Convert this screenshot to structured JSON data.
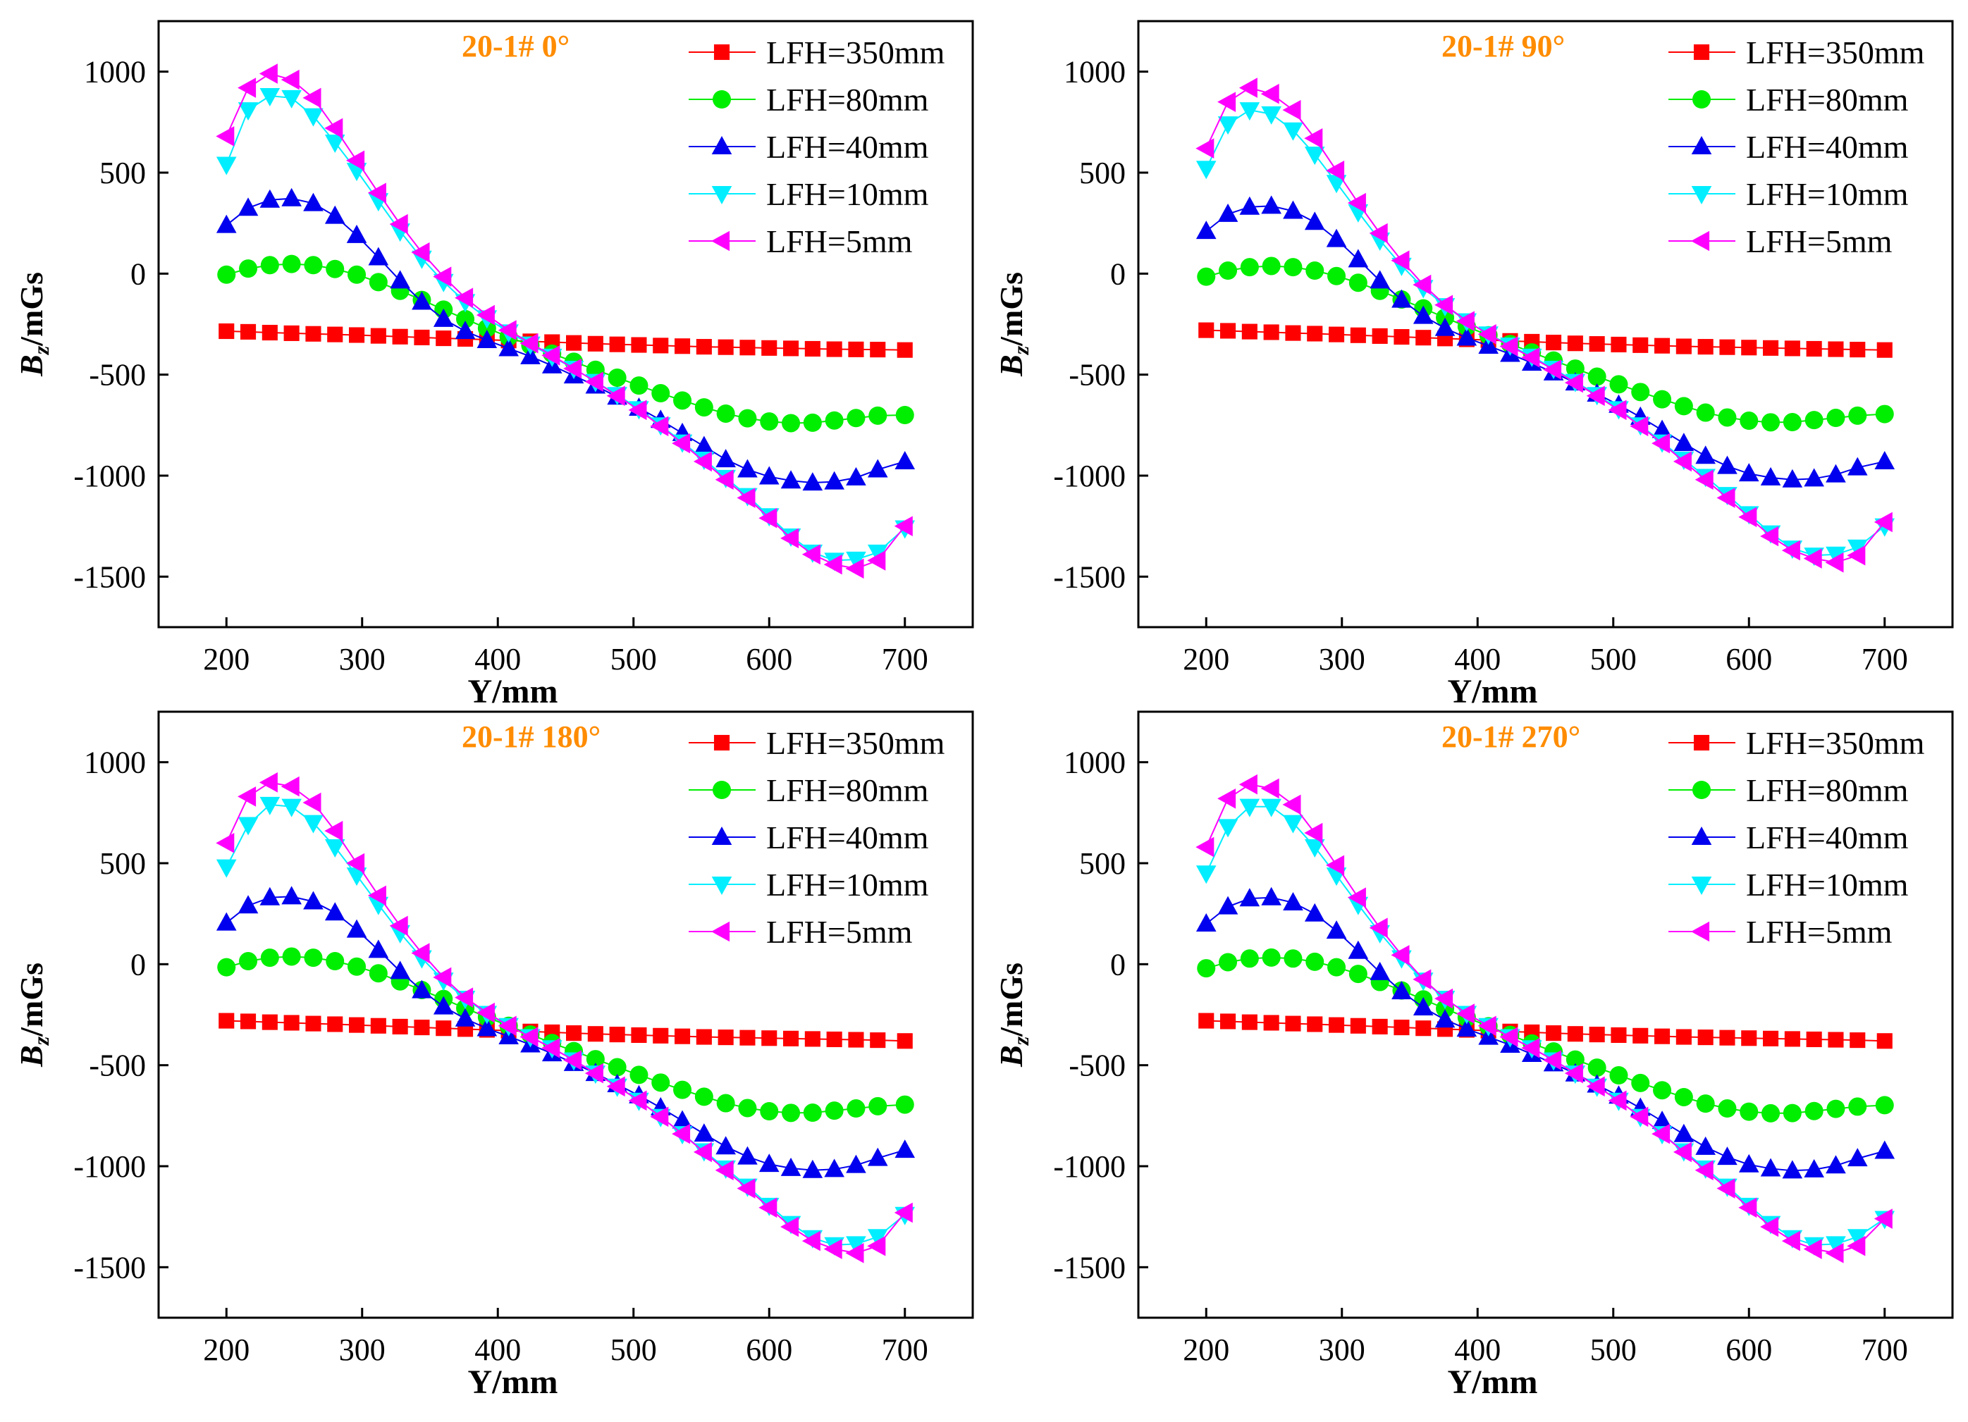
{
  "x": [
    200,
    216,
    232,
    248,
    264,
    280,
    296,
    312,
    328,
    344,
    360,
    376,
    392,
    408,
    424,
    440,
    456,
    472,
    488,
    504,
    520,
    536,
    552,
    568,
    584,
    600,
    616,
    632,
    648,
    664,
    680,
    700
  ],
  "chart_data": [
    {
      "type": "line",
      "title": "20-1# 0°",
      "xlabel": "Y/mm",
      "ylabel_main": "B",
      "ylabel_sub": "z",
      "ylabel_rest": "/mGs",
      "xlim": [
        150,
        750
      ],
      "ylim": [
        -1750,
        1250
      ],
      "xticks": [
        200,
        300,
        400,
        500,
        600,
        700
      ],
      "yticks": [
        -1500,
        -1000,
        -500,
        0,
        500,
        1000
      ],
      "legend_position": "top-right",
      "grid": false,
      "series": [
        {
          "name": "LFH=350mm",
          "color": "#ff0000",
          "marker": "square",
          "values": [
            -285,
            -288,
            -292,
            -295,
            -298,
            -301,
            -304,
            -308,
            -312,
            -316,
            -320,
            -323,
            -327,
            -331,
            -335,
            -339,
            -343,
            -347,
            -350,
            -353,
            -356,
            -359,
            -362,
            -364,
            -366,
            -368,
            -370,
            -372,
            -374,
            -375,
            -376,
            -378
          ]
        },
        {
          "name": "LFH=80mm",
          "color": "#00ee00",
          "marker": "circle",
          "values": [
            -5,
            25,
            42,
            48,
            42,
            23,
            -5,
            -42,
            -85,
            -130,
            -178,
            -225,
            -270,
            -313,
            -355,
            -396,
            -436,
            -476,
            -515,
            -554,
            -592,
            -628,
            -662,
            -693,
            -716,
            -732,
            -740,
            -738,
            -727,
            -715,
            -703,
            -700
          ]
        },
        {
          "name": "LFH=40mm",
          "color": "#0000ee",
          "marker": "triangle-up",
          "values": [
            240,
            325,
            365,
            372,
            348,
            285,
            190,
            80,
            -35,
            -140,
            -225,
            -285,
            -330,
            -370,
            -410,
            -455,
            -505,
            -555,
            -610,
            -665,
            -725,
            -790,
            -855,
            -920,
            -970,
            -1005,
            -1025,
            -1035,
            -1030,
            -1010,
            -970,
            -930
          ]
        },
        {
          "name": "LFH=10mm",
          "color": "#00eeff",
          "marker": "triangle-down",
          "values": [
            540,
            810,
            880,
            870,
            780,
            650,
            510,
            360,
            210,
            75,
            -40,
            -140,
            -220,
            -290,
            -350,
            -410,
            -470,
            -535,
            -600,
            -670,
            -750,
            -835,
            -920,
            -1010,
            -1100,
            -1200,
            -1300,
            -1380,
            -1420,
            -1415,
            -1380,
            -1260
          ]
        },
        {
          "name": "LFH=5mm",
          "color": "#ff00ff",
          "marker": "triangle-left",
          "values": [
            680,
            920,
            990,
            960,
            870,
            720,
            560,
            400,
            245,
            105,
            -15,
            -120,
            -205,
            -280,
            -345,
            -405,
            -470,
            -535,
            -605,
            -675,
            -755,
            -840,
            -930,
            -1020,
            -1110,
            -1210,
            -1310,
            -1390,
            -1440,
            -1460,
            -1420,
            -1250
          ]
        }
      ]
    },
    {
      "type": "line",
      "title": "20-1# 90°",
      "xlabel": "Y/mm",
      "ylabel_main": "B",
      "ylabel_sub": "z",
      "ylabel_rest": "/mGs",
      "xlim": [
        150,
        750
      ],
      "ylim": [
        -1750,
        1250
      ],
      "xticks": [
        200,
        300,
        400,
        500,
        600,
        700
      ],
      "yticks": [
        -1500,
        -1000,
        -500,
        0,
        500,
        1000
      ],
      "legend_position": "top-right",
      "grid": false,
      "series": [
        {
          "name": "LFH=350mm",
          "color": "#ff0000",
          "marker": "square",
          "values": [
            -280,
            -283,
            -287,
            -290,
            -294,
            -297,
            -301,
            -305,
            -309,
            -313,
            -317,
            -321,
            -325,
            -329,
            -333,
            -337,
            -341,
            -345,
            -348,
            -351,
            -354,
            -357,
            -360,
            -362,
            -364,
            -366,
            -368,
            -370,
            -372,
            -374,
            -376,
            -378
          ]
        },
        {
          "name": "LFH=80mm",
          "color": "#00ee00",
          "marker": "circle",
          "values": [
            -15,
            15,
            32,
            38,
            32,
            15,
            -12,
            -45,
            -85,
            -128,
            -172,
            -218,
            -262,
            -305,
            -348,
            -390,
            -430,
            -470,
            -510,
            -548,
            -586,
            -622,
            -656,
            -688,
            -712,
            -728,
            -736,
            -735,
            -725,
            -714,
            -703,
            -695
          ]
        },
        {
          "name": "LFH=40mm",
          "color": "#0000ee",
          "marker": "triangle-up",
          "values": [
            210,
            295,
            330,
            335,
            310,
            255,
            170,
            70,
            -35,
            -130,
            -210,
            -270,
            -318,
            -358,
            -398,
            -442,
            -490,
            -540,
            -595,
            -650,
            -710,
            -775,
            -840,
            -903,
            -953,
            -990,
            -1010,
            -1020,
            -1015,
            -995,
            -960,
            -930
          ]
        },
        {
          "name": "LFH=10mm",
          "color": "#00eeff",
          "marker": "triangle-down",
          "values": [
            520,
            740,
            810,
            790,
            710,
            590,
            450,
            305,
            165,
            40,
            -70,
            -160,
            -235,
            -300,
            -355,
            -410,
            -470,
            -535,
            -600,
            -670,
            -750,
            -835,
            -920,
            -1005,
            -1095,
            -1190,
            -1285,
            -1360,
            -1395,
            -1390,
            -1355,
            -1250
          ]
        },
        {
          "name": "LFH=5mm",
          "color": "#ff00ff",
          "marker": "triangle-left",
          "values": [
            620,
            850,
            920,
            890,
            810,
            670,
            510,
            350,
            200,
            65,
            -55,
            -155,
            -235,
            -300,
            -360,
            -415,
            -475,
            -540,
            -605,
            -675,
            -755,
            -840,
            -930,
            -1020,
            -1110,
            -1205,
            -1300,
            -1370,
            -1410,
            -1430,
            -1395,
            -1230
          ]
        }
      ]
    },
    {
      "type": "line",
      "title": "20-1# 180°",
      "xlabel": "Y/mm",
      "ylabel_main": "B",
      "ylabel_sub": "z",
      "ylabel_rest": "/mGs",
      "xlim": [
        150,
        750
      ],
      "ylim": [
        -1750,
        1250
      ],
      "xticks": [
        200,
        300,
        400,
        500,
        600,
        700
      ],
      "yticks": [
        -1500,
        -1000,
        -500,
        0,
        500,
        1000
      ],
      "legend_position": "top-right",
      "grid": false,
      "series": [
        {
          "name": "LFH=350mm",
          "color": "#ff0000",
          "marker": "square",
          "values": [
            -280,
            -283,
            -287,
            -290,
            -294,
            -297,
            -301,
            -305,
            -309,
            -313,
            -317,
            -321,
            -325,
            -329,
            -333,
            -337,
            -341,
            -345,
            -348,
            -351,
            -354,
            -357,
            -360,
            -362,
            -364,
            -366,
            -368,
            -370,
            -372,
            -374,
            -376,
            -380
          ]
        },
        {
          "name": "LFH=80mm",
          "color": "#00ee00",
          "marker": "circle",
          "values": [
            -15,
            15,
            32,
            38,
            32,
            15,
            -12,
            -45,
            -85,
            -128,
            -172,
            -218,
            -262,
            -305,
            -348,
            -390,
            -430,
            -470,
            -510,
            -548,
            -586,
            -622,
            -656,
            -688,
            -712,
            -728,
            -736,
            -735,
            -725,
            -714,
            -703,
            -695
          ]
        },
        {
          "name": "LFH=40mm",
          "color": "#0000ee",
          "marker": "triangle-up",
          "values": [
            205,
            290,
            330,
            335,
            310,
            255,
            170,
            70,
            -35,
            -130,
            -210,
            -270,
            -318,
            -358,
            -398,
            -442,
            -490,
            -540,
            -595,
            -650,
            -710,
            -775,
            -840,
            -903,
            -953,
            -990,
            -1010,
            -1020,
            -1015,
            -995,
            -960,
            -920
          ]
        },
        {
          "name": "LFH=10mm",
          "color": "#00eeff",
          "marker": "triangle-down",
          "values": [
            480,
            690,
            790,
            780,
            700,
            580,
            440,
            295,
            155,
            30,
            -80,
            -170,
            -245,
            -305,
            -360,
            -415,
            -475,
            -540,
            -605,
            -675,
            -755,
            -840,
            -925,
            -1010,
            -1100,
            -1195,
            -1285,
            -1355,
            -1390,
            -1385,
            -1350,
            -1240
          ]
        },
        {
          "name": "LFH=5mm",
          "color": "#ff00ff",
          "marker": "triangle-left",
          "values": [
            600,
            830,
            900,
            880,
            800,
            660,
            500,
            340,
            190,
            55,
            -65,
            -165,
            -240,
            -305,
            -360,
            -415,
            -475,
            -540,
            -605,
            -675,
            -755,
            -840,
            -930,
            -1020,
            -1110,
            -1205,
            -1300,
            -1370,
            -1410,
            -1430,
            -1395,
            -1230
          ]
        }
      ]
    },
    {
      "type": "line",
      "title": "20-1# 270°",
      "xlabel": "Y/mm",
      "ylabel_main": "B",
      "ylabel_sub": "z",
      "ylabel_rest": "/mGs",
      "xlim": [
        150,
        750
      ],
      "ylim": [
        -1750,
        1250
      ],
      "xticks": [
        200,
        300,
        400,
        500,
        600,
        700
      ],
      "yticks": [
        -1500,
        -1000,
        -500,
        0,
        500,
        1000
      ],
      "legend_position": "top-right",
      "grid": false,
      "series": [
        {
          "name": "LFH=350mm",
          "color": "#ff0000",
          "marker": "square",
          "values": [
            -280,
            -283,
            -287,
            -290,
            -294,
            -297,
            -301,
            -305,
            -309,
            -313,
            -317,
            -321,
            -325,
            -329,
            -333,
            -337,
            -341,
            -345,
            -348,
            -351,
            -354,
            -357,
            -360,
            -362,
            -364,
            -366,
            -368,
            -370,
            -372,
            -374,
            -376,
            -380
          ]
        },
        {
          "name": "LFH=80mm",
          "color": "#00ee00",
          "marker": "circle",
          "values": [
            -20,
            10,
            28,
            33,
            28,
            12,
            -15,
            -48,
            -88,
            -130,
            -174,
            -220,
            -264,
            -307,
            -350,
            -392,
            -432,
            -472,
            -512,
            -550,
            -588,
            -624,
            -658,
            -690,
            -714,
            -730,
            -738,
            -737,
            -727,
            -716,
            -705,
            -698
          ]
        },
        {
          "name": "LFH=40mm",
          "color": "#0000ee",
          "marker": "triangle-up",
          "values": [
            200,
            285,
            325,
            330,
            305,
            250,
            165,
            65,
            -40,
            -135,
            -215,
            -275,
            -320,
            -360,
            -400,
            -445,
            -492,
            -542,
            -597,
            -652,
            -712,
            -777,
            -842,
            -905,
            -955,
            -992,
            -1012,
            -1022,
            -1017,
            -997,
            -962,
            -925
          ]
        },
        {
          "name": "LFH=10mm",
          "color": "#00eeff",
          "marker": "triangle-down",
          "values": [
            450,
            680,
            780,
            780,
            700,
            580,
            440,
            295,
            155,
            30,
            -80,
            -170,
            -245,
            -305,
            -360,
            -415,
            -475,
            -540,
            -605,
            -675,
            -755,
            -840,
            -925,
            -1010,
            -1100,
            -1195,
            -1285,
            -1355,
            -1390,
            -1385,
            -1350,
            -1260
          ]
        },
        {
          "name": "LFH=5mm",
          "color": "#ff00ff",
          "marker": "triangle-left",
          "values": [
            580,
            820,
            890,
            870,
            790,
            650,
            490,
            330,
            180,
            45,
            -75,
            -170,
            -245,
            -305,
            -360,
            -415,
            -475,
            -540,
            -605,
            -675,
            -755,
            -840,
            -930,
            -1020,
            -1110,
            -1205,
            -1300,
            -1370,
            -1410,
            -1430,
            -1395,
            -1260
          ]
        }
      ]
    }
  ]
}
